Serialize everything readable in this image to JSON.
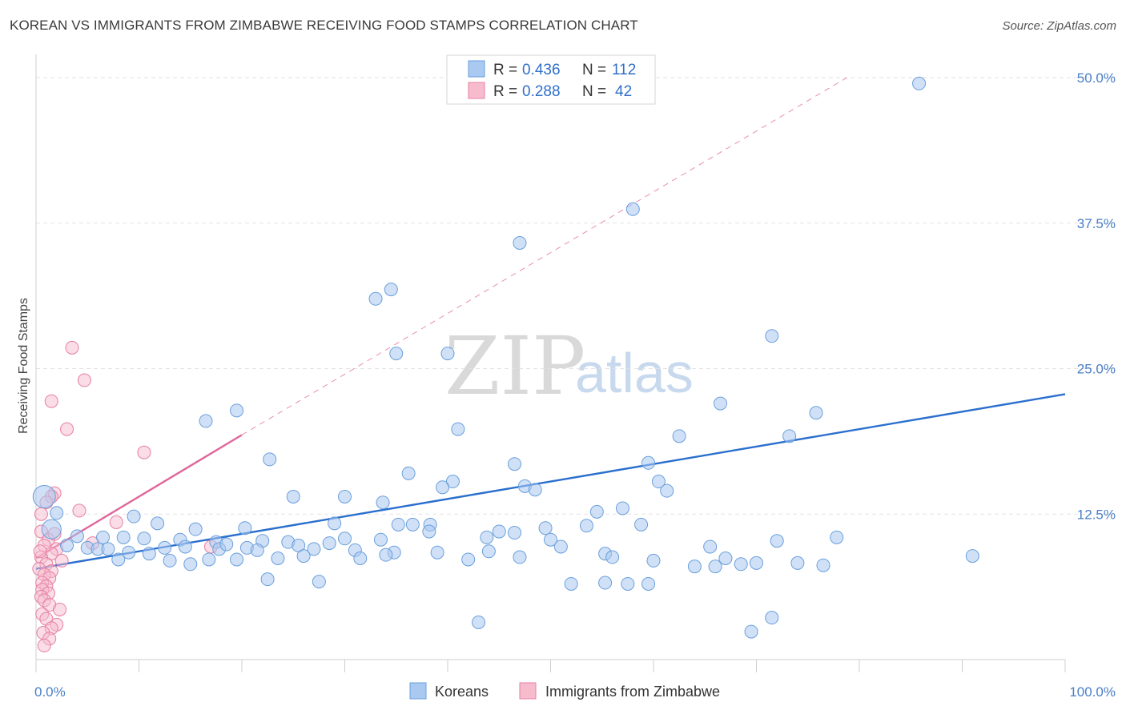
{
  "header": {
    "title": "KOREAN VS IMMIGRANTS FROM ZIMBABWE RECEIVING FOOD STAMPS CORRELATION CHART",
    "source": "Source: ZipAtlas.com"
  },
  "watermark": {
    "zip": "ZIP",
    "atlas": "atlas"
  },
  "legend": {
    "rows": [
      {
        "r_label": "R =",
        "r_value": "0.436",
        "n_label": "N =",
        "n_value": "112",
        "color": "#9ec3ee"
      },
      {
        "r_label": "R =",
        "r_value": "0.288",
        "n_label": "N =",
        "n_value": "42",
        "color": "#f4b4c8"
      }
    ]
  },
  "bottom_legend": [
    {
      "label": "Koreans",
      "color": "#9ec3ee"
    },
    {
      "label": "Immigrants from Zimbabwe",
      "color": "#f4b4c8"
    }
  ],
  "colors": {
    "blue_fill": "#a9c9f0",
    "blue_stroke": "#6a9fdc",
    "blue_line": "#2a6fce",
    "pink_fill": "#f6bccd",
    "pink_stroke": "#e67fa2",
    "pink_line": "#e0679a",
    "grid": "#e2e2e2",
    "tick_label": "#4a7fc8"
  },
  "chart_data": {
    "type": "scatter",
    "title": "KOREAN VS IMMIGRANTS FROM ZIMBABWE RECEIVING FOOD STAMPS CORRELATION CHART",
    "xlabel": "",
    "ylabel": "Receiving Food Stamps",
    "xlim": [
      0,
      100
    ],
    "ylim": [
      0,
      50
    ],
    "x_tick_labels": [
      "0.0%",
      "100.0%"
    ],
    "y_ticks": [
      12.5,
      25.0,
      37.5,
      50.0
    ],
    "y_tick_labels": [
      "12.5%",
      "25.0%",
      "37.5%",
      "50.0%"
    ],
    "grid": true,
    "legend_position": "top-center",
    "series": [
      {
        "name": "Koreans",
        "points": [
          [
            85.8,
            49.5
          ],
          [
            58.0,
            38.7
          ],
          [
            47.0,
            35.8
          ],
          [
            34.5,
            31.8
          ],
          [
            33.0,
            31.0
          ],
          [
            71.5,
            27.8
          ],
          [
            40.0,
            26.3
          ],
          [
            35.0,
            26.3
          ],
          [
            66.5,
            22.0
          ],
          [
            19.5,
            21.4
          ],
          [
            75.8,
            21.2
          ],
          [
            16.5,
            20.5
          ],
          [
            41.0,
            19.8
          ],
          [
            62.5,
            19.2
          ],
          [
            73.2,
            19.2
          ],
          [
            22.7,
            17.2
          ],
          [
            46.5,
            16.8
          ],
          [
            59.5,
            16.9
          ],
          [
            36.2,
            16.0
          ],
          [
            40.5,
            15.3
          ],
          [
            60.5,
            15.3
          ],
          [
            47.5,
            14.9
          ],
          [
            39.5,
            14.8
          ],
          [
            48.5,
            14.6
          ],
          [
            30.0,
            14.0
          ],
          [
            61.3,
            14.5
          ],
          [
            25.0,
            14.0
          ],
          [
            33.7,
            13.5
          ],
          [
            54.5,
            12.7
          ],
          [
            57.0,
            13.0
          ],
          [
            0.8,
            14.0
          ],
          [
            2.0,
            12.6
          ],
          [
            9.5,
            12.3
          ],
          [
            29.0,
            11.7
          ],
          [
            11.8,
            11.7
          ],
          [
            15.5,
            11.2
          ],
          [
            20.3,
            11.3
          ],
          [
            35.2,
            11.6
          ],
          [
            36.6,
            11.6
          ],
          [
            38.3,
            11.6
          ],
          [
            49.5,
            11.3
          ],
          [
            58.8,
            11.6
          ],
          [
            53.5,
            11.5
          ],
          [
            45.0,
            11.0
          ],
          [
            38.2,
            11.0
          ],
          [
            1.5,
            11.2
          ],
          [
            4.0,
            10.6
          ],
          [
            6.5,
            10.5
          ],
          [
            8.5,
            10.5
          ],
          [
            10.5,
            10.4
          ],
          [
            14.0,
            10.3
          ],
          [
            17.5,
            10.1
          ],
          [
            22.0,
            10.2
          ],
          [
            24.5,
            10.1
          ],
          [
            28.5,
            10.0
          ],
          [
            30.0,
            10.4
          ],
          [
            33.5,
            10.3
          ],
          [
            43.8,
            10.5
          ],
          [
            46.5,
            10.9
          ],
          [
            50.0,
            10.3
          ],
          [
            3.0,
            9.8
          ],
          [
            5.0,
            9.6
          ],
          [
            6.0,
            9.5
          ],
          [
            7.0,
            9.5
          ],
          [
            9.0,
            9.2
          ],
          [
            11.0,
            9.1
          ],
          [
            12.5,
            9.6
          ],
          [
            14.5,
            9.7
          ],
          [
            17.8,
            9.5
          ],
          [
            18.5,
            9.9
          ],
          [
            20.5,
            9.6
          ],
          [
            21.5,
            9.4
          ],
          [
            25.5,
            9.8
          ],
          [
            27.0,
            9.5
          ],
          [
            31.0,
            9.4
          ],
          [
            34.8,
            9.2
          ],
          [
            39.0,
            9.2
          ],
          [
            44.0,
            9.3
          ],
          [
            55.3,
            9.1
          ],
          [
            65.5,
            9.7
          ],
          [
            51.0,
            9.7
          ],
          [
            72.0,
            10.2
          ],
          [
            77.8,
            10.5
          ],
          [
            8.0,
            8.6
          ],
          [
            13.0,
            8.5
          ],
          [
            15.0,
            8.2
          ],
          [
            16.8,
            8.6
          ],
          [
            19.5,
            8.6
          ],
          [
            23.5,
            8.7
          ],
          [
            26.0,
            8.9
          ],
          [
            31.5,
            8.7
          ],
          [
            34.0,
            9.0
          ],
          [
            42.0,
            8.6
          ],
          [
            47.0,
            8.8
          ],
          [
            56.0,
            8.8
          ],
          [
            60.0,
            8.5
          ],
          [
            66.0,
            8.0
          ],
          [
            67.0,
            8.7
          ],
          [
            68.5,
            8.2
          ],
          [
            70.0,
            8.3
          ],
          [
            64.0,
            8.0
          ],
          [
            74.0,
            8.3
          ],
          [
            76.5,
            8.1
          ],
          [
            91.0,
            8.9
          ],
          [
            22.5,
            6.9
          ],
          [
            52.0,
            6.5
          ],
          [
            55.3,
            6.6
          ],
          [
            57.5,
            6.5
          ],
          [
            59.5,
            6.5
          ],
          [
            27.5,
            6.7
          ],
          [
            71.5,
            3.6
          ],
          [
            43.0,
            3.2
          ],
          [
            69.5,
            2.4
          ]
        ]
      },
      {
        "name": "Immigrants from Zimbabwe",
        "points": [
          [
            3.5,
            26.8
          ],
          [
            4.7,
            24.0
          ],
          [
            1.5,
            22.2
          ],
          [
            3.0,
            19.8
          ],
          [
            10.5,
            17.8
          ],
          [
            1.8,
            14.3
          ],
          [
            1.5,
            14.0
          ],
          [
            1.0,
            13.5
          ],
          [
            4.2,
            12.8
          ],
          [
            0.5,
            12.5
          ],
          [
            7.8,
            11.8
          ],
          [
            0.5,
            11.0
          ],
          [
            1.2,
            10.3
          ],
          [
            0.8,
            9.8
          ],
          [
            2.0,
            9.5
          ],
          [
            1.5,
            9.1
          ],
          [
            0.5,
            8.8
          ],
          [
            5.5,
            10.0
          ],
          [
            17.0,
            9.7
          ],
          [
            2.5,
            8.5
          ],
          [
            1.0,
            8.2
          ],
          [
            0.3,
            7.8
          ],
          [
            1.5,
            7.6
          ],
          [
            0.8,
            7.3
          ],
          [
            1.3,
            7.0
          ],
          [
            0.6,
            6.6
          ],
          [
            1.0,
            6.3
          ],
          [
            0.6,
            6.0
          ],
          [
            1.2,
            5.7
          ],
          [
            0.5,
            5.4
          ],
          [
            0.8,
            5.1
          ],
          [
            1.3,
            4.7
          ],
          [
            2.3,
            4.3
          ],
          [
            0.6,
            3.9
          ],
          [
            1.0,
            3.5
          ],
          [
            2.0,
            3.0
          ],
          [
            1.5,
            2.7
          ],
          [
            0.7,
            2.3
          ],
          [
            1.3,
            1.8
          ],
          [
            0.8,
            1.2
          ],
          [
            1.8,
            10.8
          ],
          [
            0.4,
            9.3
          ]
        ]
      }
    ],
    "trend_lines": [
      {
        "series": "Koreans",
        "x": [
          0,
          100
        ],
        "y": [
          7.8,
          22.8
        ],
        "style": "solid"
      },
      {
        "series": "Immigrants from Zimbabwe",
        "x": [
          0,
          20
        ],
        "y": [
          8.7,
          19.3
        ],
        "style": "solid"
      },
      {
        "series": "Immigrants from Zimbabwe",
        "x": [
          20,
          78.8
        ],
        "y": [
          19.3,
          50.0
        ],
        "style": "dashed"
      }
    ]
  }
}
